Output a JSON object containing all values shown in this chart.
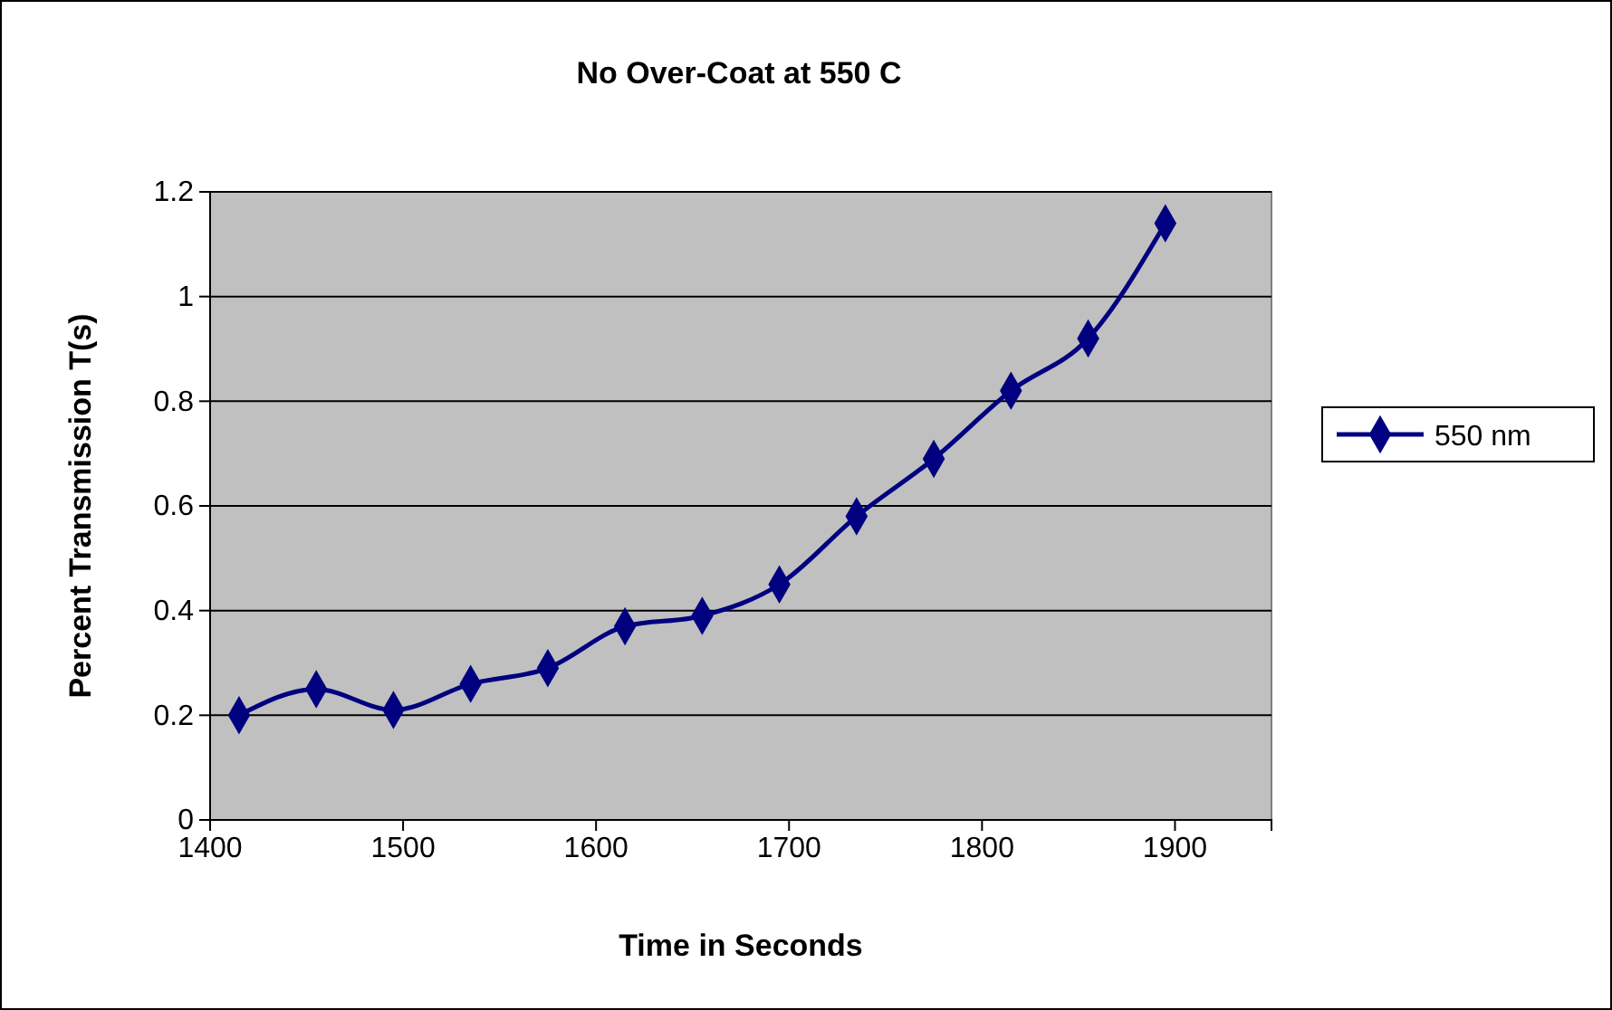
{
  "chart_data": {
    "type": "line",
    "title": "No Over-Coat at 550 C",
    "xlabel": "Time in Seconds",
    "ylabel": "Percent Transmission T(s)",
    "x": [
      1415,
      1455,
      1495,
      1535,
      1575,
      1615,
      1655,
      1695,
      1735,
      1775,
      1815,
      1855,
      1895
    ],
    "series": [
      {
        "name": "550 nm",
        "color": "#000080",
        "values": [
          0.2,
          0.25,
          0.21,
          0.26,
          0.29,
          0.37,
          0.39,
          0.45,
          0.58,
          0.69,
          0.82,
          0.92,
          1.14
        ]
      }
    ],
    "xlim": [
      1400,
      1950
    ],
    "xticks": [
      1400,
      1500,
      1600,
      1700,
      1800,
      1900
    ],
    "ylim": [
      0,
      1.2
    ],
    "yticks": [
      0,
      0.2,
      0.4,
      0.6,
      0.8,
      1,
      1.2
    ],
    "grid": "y",
    "legend": "right",
    "marker": "diamond",
    "line_style": "solid"
  }
}
